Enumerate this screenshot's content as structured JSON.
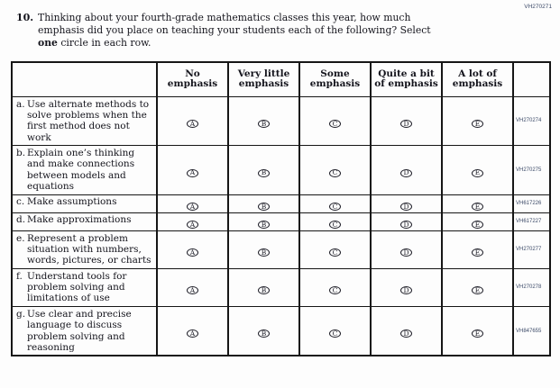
{
  "page": {
    "form_code": "VH270271"
  },
  "question": {
    "number": "10.",
    "text_before_bold": "Thinking about your fourth-grade mathematics classes this year, how much emphasis did you place on teaching your students each of the following? Select ",
    "text_bold": "one",
    "text_after_bold": " circle in each row."
  },
  "table": {
    "columns": [
      "No emphasis",
      "Very little emphasis",
      "Some emphasis",
      "Quite a bit of emphasis",
      "A lot of emphasis"
    ],
    "option_letters": [
      "A",
      "B",
      "C",
      "D",
      "E"
    ],
    "rows": [
      {
        "letter": "a.",
        "text": "Use alternate methods to solve problems when the first method does not work",
        "code": "VH270274"
      },
      {
        "letter": "b.",
        "text": "Explain one’s thinking and make connections between models and equations",
        "code": "VH270275"
      },
      {
        "letter": "c.",
        "text": "Make assumptions",
        "code": "VH617226"
      },
      {
        "letter": "d.",
        "text": "Make approximations",
        "code": "VH617227"
      },
      {
        "letter": "e.",
        "text": "Represent a problem situation with numbers, words, pictures, or charts",
        "code": "VH270277"
      },
      {
        "letter": "f.",
        "text": "Understand tools for problem solving and limitations of use",
        "code": "VH270278"
      },
      {
        "letter": "g.",
        "text": "Use clear and precise language to discuss problem solving and reasoning",
        "code": "VH847655"
      }
    ]
  }
}
